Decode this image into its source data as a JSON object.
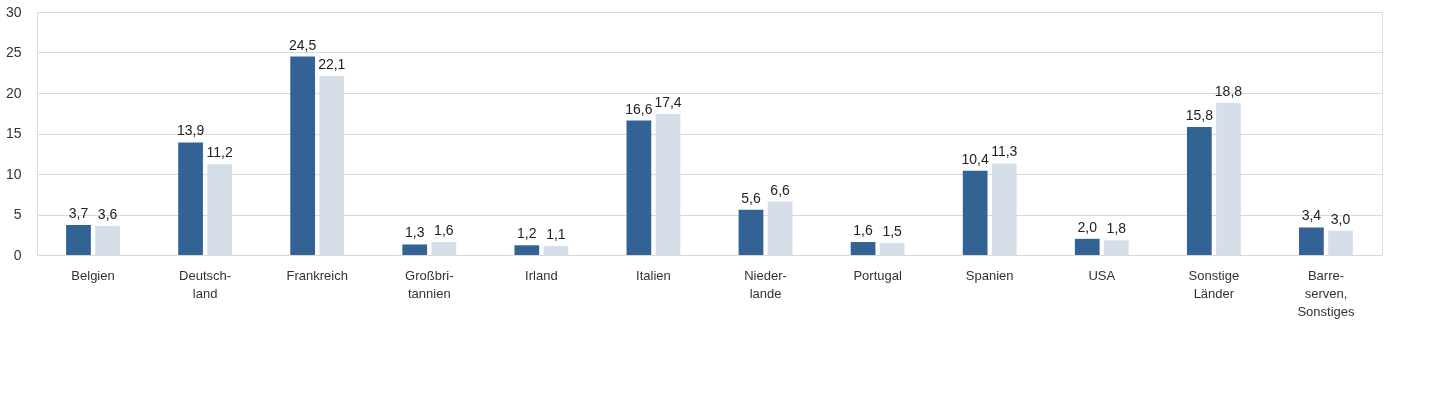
{
  "chart_data": {
    "type": "bar",
    "categories": [
      "Belgien",
      "Deutsch-\nland",
      "Frankreich",
      "Großbri-\ntannien",
      "Irland",
      "Italien",
      "Nieder-\nlande",
      "Portugal",
      "Spanien",
      "USA",
      "Sonstige\nLänder",
      "Barre-\nserven,\nSonstiges"
    ],
    "series": [
      {
        "color": "#336294",
        "values": [
          3.7,
          13.9,
          24.5,
          1.3,
          1.2,
          16.6,
          5.6,
          1.6,
          10.4,
          2.0,
          15.8,
          3.4
        ],
        "value_labels": [
          "3,7",
          "13,9",
          "24,5",
          "1,3",
          "1,2",
          "16,6",
          "5,6",
          "1,6",
          "10,4",
          "2,0",
          "15,8",
          "3,4"
        ]
      },
      {
        "color": "#d6dfe9",
        "values": [
          3.6,
          11.2,
          22.1,
          1.6,
          1.1,
          17.4,
          6.6,
          1.5,
          11.3,
          1.8,
          18.8,
          3.0
        ],
        "value_labels": [
          "3,6",
          "11,2",
          "22,1",
          "1,6",
          "1,1",
          "17,4",
          "6,6",
          "1,5",
          "11,3",
          "1,8",
          "18,8",
          "3,0"
        ]
      }
    ],
    "ylim": [
      0,
      30
    ],
    "yticks": [
      0,
      5,
      10,
      15,
      20,
      25,
      30
    ],
    "grid": "y",
    "legend": false
  }
}
